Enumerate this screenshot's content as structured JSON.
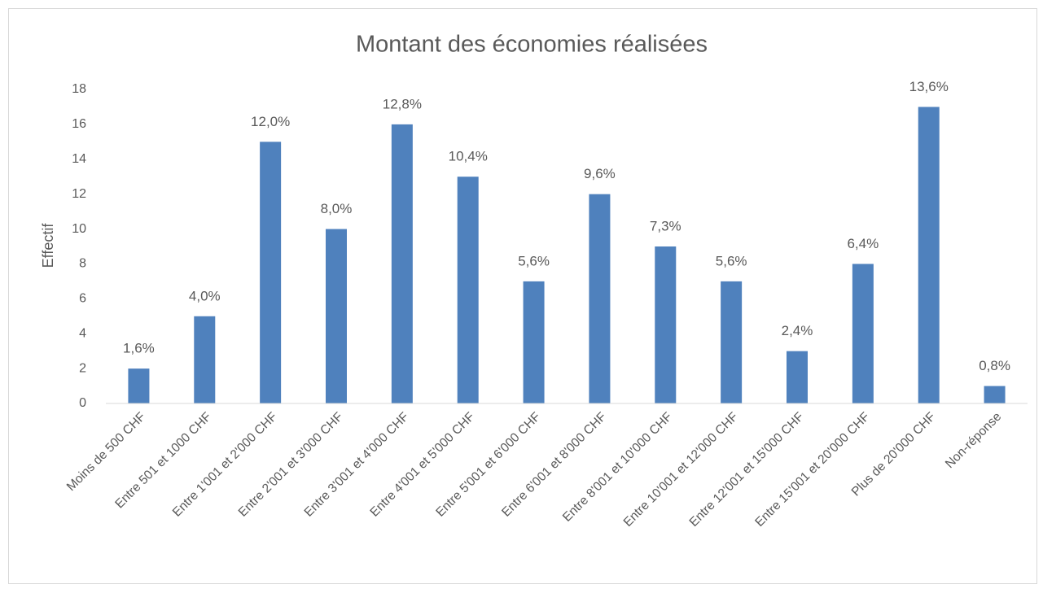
{
  "chart_data": {
    "type": "bar",
    "title": "Montant des économies réalisées",
    "y_label": "Effectif",
    "categories": [
      "Moins de 500 CHF",
      "Entre 501 et 1000 CHF",
      "Entre 1'001 et 2'000 CHF",
      "Entre 2'001 et 3'000 CHF",
      "Entre 3'001 et 4'000 CHF",
      "Entre 4'001 et 5'000 CHF",
      "Entre 5'001 et 6'000 CHF",
      "Entre 6'001 et 8'000 CHF",
      "Entre 8'001 et 10'000 CHF",
      "Entre 10'001 et 12'000 CHF",
      "Entre 12'001 et 15'000 CHF",
      "Entre 15'001 et 20'000 CHF",
      "Plus de 20'000 CHF",
      "Non-réponse"
    ],
    "values": [
      2,
      5,
      15,
      10,
      16,
      13,
      7,
      12,
      9,
      7,
      3,
      8,
      17,
      1
    ],
    "annotations": [
      "1,6%",
      "4,0%",
      "12,0%",
      "8,0%",
      "12,8%",
      "10,4%",
      "5,6%",
      "9,6%",
      "7,3%",
      "5,6%",
      "2,4%",
      "6,4%",
      "13,6%",
      "0,8%"
    ],
    "color": "#4f81bd",
    "ylim": [
      0,
      18
    ],
    "yticks": [
      0,
      2,
      4,
      6,
      8,
      10,
      12,
      14,
      16,
      18
    ],
    "grid": false
  }
}
